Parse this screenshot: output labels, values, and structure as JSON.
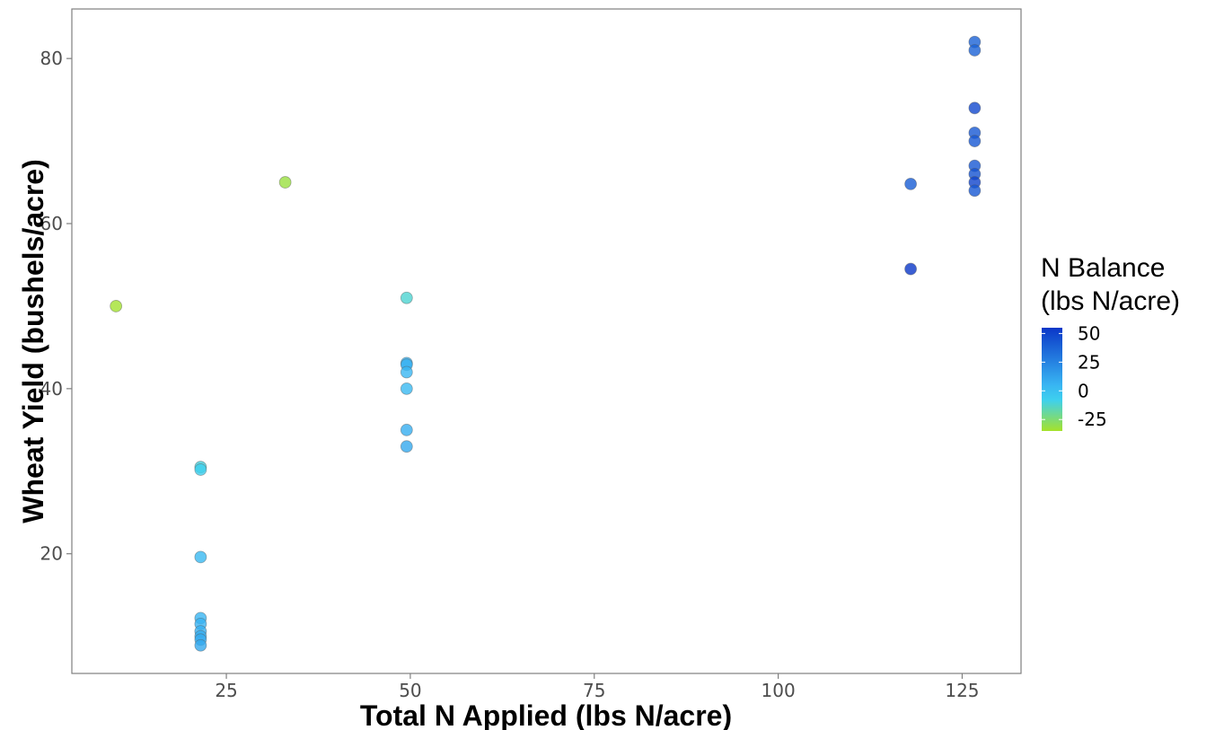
{
  "chart_data": {
    "type": "scatter",
    "xlabel": "Total N Applied (lbs N/acre)",
    "ylabel": "Wheat Yield (bushels/acre)",
    "xlim": [
      4,
      133
    ],
    "ylim": [
      5.5,
      86
    ],
    "xticks": [
      25,
      50,
      75,
      100,
      125
    ],
    "yticks": [
      20,
      40,
      60,
      80
    ],
    "grid": false,
    "legend": {
      "title_line1": "N Balance",
      "title_line2": "(lbs N/acre)",
      "placement": "right",
      "range": [
        -35,
        55
      ],
      "ticks": [
        50,
        25,
        0,
        -25
      ],
      "colors": [
        "#a6e22a",
        "#3ed0ee",
        "#38b4f2",
        "#0a37c8"
      ]
    },
    "points": [
      {
        "x": 10,
        "y": 50,
        "c": -34
      },
      {
        "x": 33,
        "y": 65,
        "c": -32
      },
      {
        "x": 21.5,
        "y": 30.5,
        "c": -10
      },
      {
        "x": 21.5,
        "y": 30.2,
        "c": -8
      },
      {
        "x": 21.5,
        "y": 19.6,
        "c": 3
      },
      {
        "x": 21.5,
        "y": 12.2,
        "c": 5
      },
      {
        "x": 21.5,
        "y": 11.5,
        "c": 6
      },
      {
        "x": 21.5,
        "y": 10.6,
        "c": 7
      },
      {
        "x": 21.5,
        "y": 10.0,
        "c": 8
      },
      {
        "x": 21.5,
        "y": 9.6,
        "c": 9
      },
      {
        "x": 21.5,
        "y": 8.9,
        "c": 10
      },
      {
        "x": 49.5,
        "y": 51,
        "c": -12
      },
      {
        "x": 49.5,
        "y": 43.1,
        "c": 6
      },
      {
        "x": 49.5,
        "y": 42.9,
        "c": 7
      },
      {
        "x": 49.5,
        "y": 42,
        "c": 4
      },
      {
        "x": 49.5,
        "y": 40,
        "c": 3
      },
      {
        "x": 49.5,
        "y": 35,
        "c": 8
      },
      {
        "x": 49.5,
        "y": 33,
        "c": 10
      },
      {
        "x": 118,
        "y": 64.8,
        "c": 40
      },
      {
        "x": 118,
        "y": 54.5,
        "c": 55
      },
      {
        "x": 126.7,
        "y": 82,
        "c": 38
      },
      {
        "x": 126.7,
        "y": 81,
        "c": 38
      },
      {
        "x": 126.7,
        "y": 74,
        "c": 48
      },
      {
        "x": 126.7,
        "y": 71,
        "c": 42
      },
      {
        "x": 126.7,
        "y": 70,
        "c": 42
      },
      {
        "x": 126.7,
        "y": 67,
        "c": 42
      },
      {
        "x": 126.7,
        "y": 66,
        "c": 44
      },
      {
        "x": 126.7,
        "y": 65,
        "c": 50
      },
      {
        "x": 126.7,
        "y": 64,
        "c": 42
      }
    ]
  }
}
